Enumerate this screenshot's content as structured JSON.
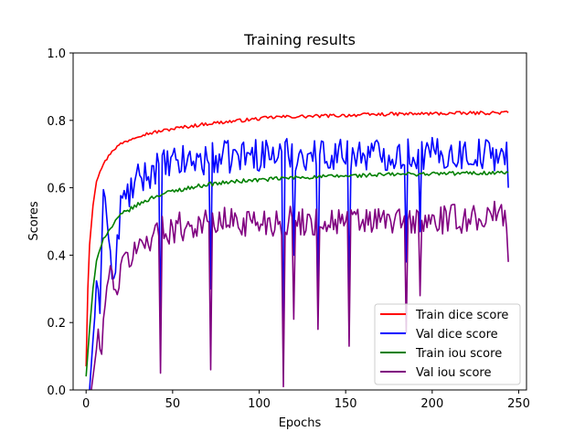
{
  "chart_data": {
    "type": "line",
    "title": "Training results",
    "xlabel": "Epochs",
    "ylabel": "Scores",
    "xlim": [
      -7.5,
      254.5
    ],
    "ylim": [
      0.0,
      1.0
    ],
    "xticks": [
      0,
      50,
      100,
      150,
      200,
      250
    ],
    "yticks": [
      0.0,
      0.2,
      0.4,
      0.6,
      0.8,
      1.0
    ],
    "grid": false,
    "legend_position": "lower-right",
    "n_epochs": 245,
    "series": [
      {
        "name": "Train dice score",
        "color": "#ff0000",
        "keypoints": [
          [
            0,
            0.07
          ],
          [
            1,
            0.3
          ],
          [
            2,
            0.43
          ],
          [
            4,
            0.55
          ],
          [
            6,
            0.62
          ],
          [
            8,
            0.65
          ],
          [
            10,
            0.67
          ],
          [
            15,
            0.71
          ],
          [
            20,
            0.73
          ],
          [
            30,
            0.755
          ],
          [
            40,
            0.765
          ],
          [
            50,
            0.775
          ],
          [
            70,
            0.79
          ],
          [
            90,
            0.8
          ],
          [
            110,
            0.81
          ],
          [
            130,
            0.812
          ],
          [
            150,
            0.815
          ],
          [
            170,
            0.818
          ],
          [
            200,
            0.82
          ],
          [
            244,
            0.823
          ]
        ],
        "noise_amplitude": 0.005,
        "spikes": []
      },
      {
        "name": "Val dice score",
        "color": "#0000ff",
        "keypoints": [
          [
            2,
            0.0
          ],
          [
            4,
            0.15
          ],
          [
            6,
            0.3
          ],
          [
            8,
            0.25
          ],
          [
            10,
            0.62
          ],
          [
            13,
            0.45
          ],
          [
            16,
            0.3
          ],
          [
            20,
            0.55
          ],
          [
            30,
            0.62
          ],
          [
            40,
            0.66
          ],
          [
            60,
            0.68
          ],
          [
            80,
            0.69
          ],
          [
            100,
            0.7
          ],
          [
            150,
            0.7
          ],
          [
            200,
            0.7
          ],
          [
            243,
            0.7
          ],
          [
            244,
            0.6
          ]
        ],
        "noise_amplitude": 0.05,
        "spikes": [
          [
            43,
            0.17
          ],
          [
            72,
            0.3
          ],
          [
            114,
            0.12
          ],
          [
            120,
            0.4
          ],
          [
            134,
            0.28
          ],
          [
            152,
            0.28
          ],
          [
            185,
            0.38
          ],
          [
            193,
            0.47
          ]
        ]
      },
      {
        "name": "Train iou score",
        "color": "#008000",
        "keypoints": [
          [
            0,
            0.04
          ],
          [
            2,
            0.18
          ],
          [
            4,
            0.3
          ],
          [
            6,
            0.38
          ],
          [
            8,
            0.42
          ],
          [
            10,
            0.45
          ],
          [
            20,
            0.52
          ],
          [
            30,
            0.55
          ],
          [
            40,
            0.575
          ],
          [
            50,
            0.59
          ],
          [
            70,
            0.61
          ],
          [
            90,
            0.62
          ],
          [
            120,
            0.63
          ],
          [
            150,
            0.635
          ],
          [
            180,
            0.64
          ],
          [
            244,
            0.645
          ]
        ],
        "noise_amplitude": 0.006,
        "spikes": []
      },
      {
        "name": "Val iou score",
        "color": "#800080",
        "keypoints": [
          [
            3,
            0.0
          ],
          [
            5,
            0.08
          ],
          [
            7,
            0.17
          ],
          [
            9,
            0.09
          ],
          [
            11,
            0.28
          ],
          [
            14,
            0.35
          ],
          [
            18,
            0.3
          ],
          [
            22,
            0.38
          ],
          [
            30,
            0.42
          ],
          [
            40,
            0.47
          ],
          [
            60,
            0.49
          ],
          [
            80,
            0.5
          ],
          [
            100,
            0.5
          ],
          [
            150,
            0.5
          ],
          [
            200,
            0.5
          ],
          [
            243,
            0.52
          ],
          [
            244,
            0.38
          ]
        ],
        "noise_amplitude": 0.045,
        "spikes": [
          [
            43,
            0.05
          ],
          [
            72,
            0.06
          ],
          [
            114,
            0.01
          ],
          [
            120,
            0.21
          ],
          [
            134,
            0.18
          ],
          [
            152,
            0.13
          ],
          [
            185,
            0.17
          ],
          [
            193,
            0.28
          ]
        ]
      }
    ]
  }
}
